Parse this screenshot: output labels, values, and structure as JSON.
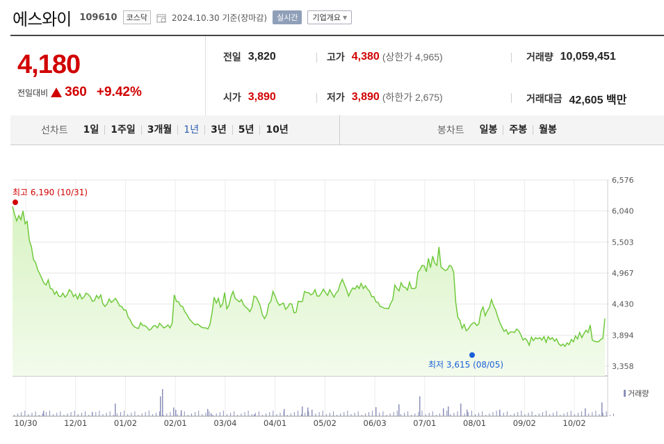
{
  "header": {
    "name": "에스와이",
    "code": "109610",
    "market": "코스닥",
    "date": "2024.10.30  기준(장마감)",
    "realtime_label": "실시간",
    "company_label": "기업개요"
  },
  "summary": {
    "price": "4,180",
    "change_label": "전일대비",
    "change": "360",
    "change_pct": "+9.42%",
    "prev_label": "전일",
    "prev": "3,820",
    "high_label": "고가",
    "high": "4,380",
    "upper_limit": "(상한가 4,965)",
    "volume_label": "거래량",
    "volume": "10,059,451",
    "open_label": "시가",
    "open": "3,890",
    "low_label": "저가",
    "low": "3,890",
    "lower_limit": "(하한가 2,675)",
    "amount_label": "거래대금",
    "amount": "42,605 백만"
  },
  "tabs": {
    "line_title": "선차트",
    "line_periods": [
      "1일",
      "1주일",
      "3개월",
      "1년",
      "3년",
      "5년",
      "10년"
    ],
    "line_active": "1년",
    "candle_title": "봉차트",
    "candle_periods": [
      "일봉",
      "주봉",
      "월봉"
    ]
  },
  "colors": {
    "up": "#d10000",
    "line": "#6ec93a",
    "fill": "#e4f7d3",
    "low_marker": "#1a5fd6"
  },
  "chart_data": {
    "type": "area",
    "x_ticks": [
      "10/30",
      "12/01",
      "01/02",
      "02/01",
      "03/04",
      "04/01",
      "05/02",
      "06/03",
      "07/01",
      "08/01",
      "09/02",
      "10/02"
    ],
    "y_ticks": [
      "6,576",
      "6,040",
      "5,503",
      "4,967",
      "4,430",
      "3,894",
      "3,358"
    ],
    "ylim": [
      3358,
      6576
    ],
    "high_label": "최고 6,190 (10/31)",
    "low_label": "최저 3,615 (08/05)",
    "volume_legend": "거래량",
    "series": [
      {
        "values": [
          6120,
          5980,
          5870,
          5960,
          5890,
          6040,
          5820,
          5860,
          5530,
          5420,
          5200,
          5150,
          5020,
          4950,
          4870,
          4790,
          4760,
          4850,
          4700,
          4690,
          4600,
          4650,
          4570,
          4560,
          4620,
          4550,
          4590,
          4680,
          4650,
          4560,
          4600,
          4520,
          4610,
          4520,
          4550,
          4620,
          4600,
          4560,
          4480,
          4490,
          4580,
          4530,
          4590,
          4440,
          4390,
          4430,
          4520,
          4460,
          4490,
          4530,
          4470,
          4400,
          4390,
          4330,
          4330,
          4210,
          4160,
          4080,
          4040,
          4020,
          4010,
          4110,
          4060,
          4060,
          4030,
          3980,
          4000,
          4050,
          4060,
          4020,
          4100,
          4060,
          4020,
          4040,
          4070,
          4020,
          4100,
          4590,
          4480,
          4470,
          4400,
          4390,
          4300,
          4250,
          4180,
          4140,
          4100,
          4070,
          4090,
          4060,
          4030,
          4020,
          4020,
          4000,
          4080,
          4280,
          4550,
          4450,
          4530,
          4380,
          4430,
          4630,
          4350,
          4410,
          4560,
          4650,
          4530,
          4500,
          4470,
          4510,
          4420,
          4380,
          4350,
          4300,
          4380,
          4570,
          4550,
          4480,
          4390,
          4240,
          4180,
          4250,
          4430,
          4480,
          4650,
          4570,
          4470,
          4410,
          4430,
          4450,
          4340,
          4380,
          4440,
          4430,
          4280,
          4290,
          4480,
          4470,
          4480,
          4650,
          4630,
          4630,
          4590,
          4610,
          4680,
          4570,
          4570,
          4620,
          4690,
          4630,
          4580,
          4680,
          4620,
          4550,
          4620,
          4660,
          4780,
          4860,
          4770,
          4680,
          4570,
          4650,
          4710,
          4690,
          4750,
          4700,
          4790,
          4700,
          4750,
          4690,
          4650,
          4560,
          4560,
          4470,
          4460,
          4390,
          4380,
          4360,
          4360,
          4350,
          4440,
          4510,
          4760,
          4700,
          4660,
          4800,
          4730,
          4720,
          4670,
          4810,
          4700,
          4700,
          4710,
          4980,
          5030,
          5100,
          5090,
          4990,
          5220,
          5060,
          5260,
          5140,
          5100,
          5420,
          5070,
          5040,
          5010,
          5030,
          5100,
          5080,
          4980,
          4460,
          4200,
          4150,
          4010,
          4080,
          3970,
          4000,
          4060,
          4100,
          4110,
          4060,
          4090,
          4300,
          4380,
          4230,
          4310,
          4370,
          4510,
          4400,
          4330,
          4210,
          4110,
          4030,
          3960,
          3990,
          3910,
          3950,
          3950,
          3940,
          4000,
          3970,
          3900,
          3810,
          3840,
          3800,
          3720,
          3860,
          3800,
          3850,
          3830,
          3850,
          3810,
          3870,
          3770,
          3870,
          3820,
          3850,
          3790,
          3830,
          3750,
          3710,
          3740,
          3700,
          3760,
          3730,
          3820,
          3780,
          3880,
          3830,
          3940,
          3850,
          3920,
          3980,
          3940,
          4070,
          3810,
          3790,
          3780,
          3780,
          3820,
          3840,
          4180
        ]
      }
    ],
    "volume_spikes": [
      [
        62,
        0.15
      ],
      [
        132,
        0.12
      ],
      [
        165,
        0.35
      ],
      [
        230,
        0.55
      ],
      [
        233,
        0.75
      ],
      [
        249,
        0.24
      ],
      [
        252,
        0.18
      ],
      [
        260,
        0.17
      ],
      [
        298,
        0.2
      ],
      [
        303,
        0.08
      ],
      [
        365,
        0.05
      ],
      [
        408,
        0.2
      ],
      [
        434,
        0.27
      ],
      [
        442,
        0.24
      ],
      [
        448,
        0.18
      ],
      [
        540,
        0.25
      ],
      [
        573,
        0.2
      ],
      [
        573,
        0.33
      ],
      [
        603,
        0.55
      ],
      [
        637,
        0.22
      ],
      [
        644,
        0.27
      ],
      [
        662,
        0.35
      ],
      [
        671,
        0.18
      ],
      [
        718,
        0.18
      ],
      [
        841,
        0.22
      ],
      [
        865,
        0.38
      ]
    ]
  }
}
